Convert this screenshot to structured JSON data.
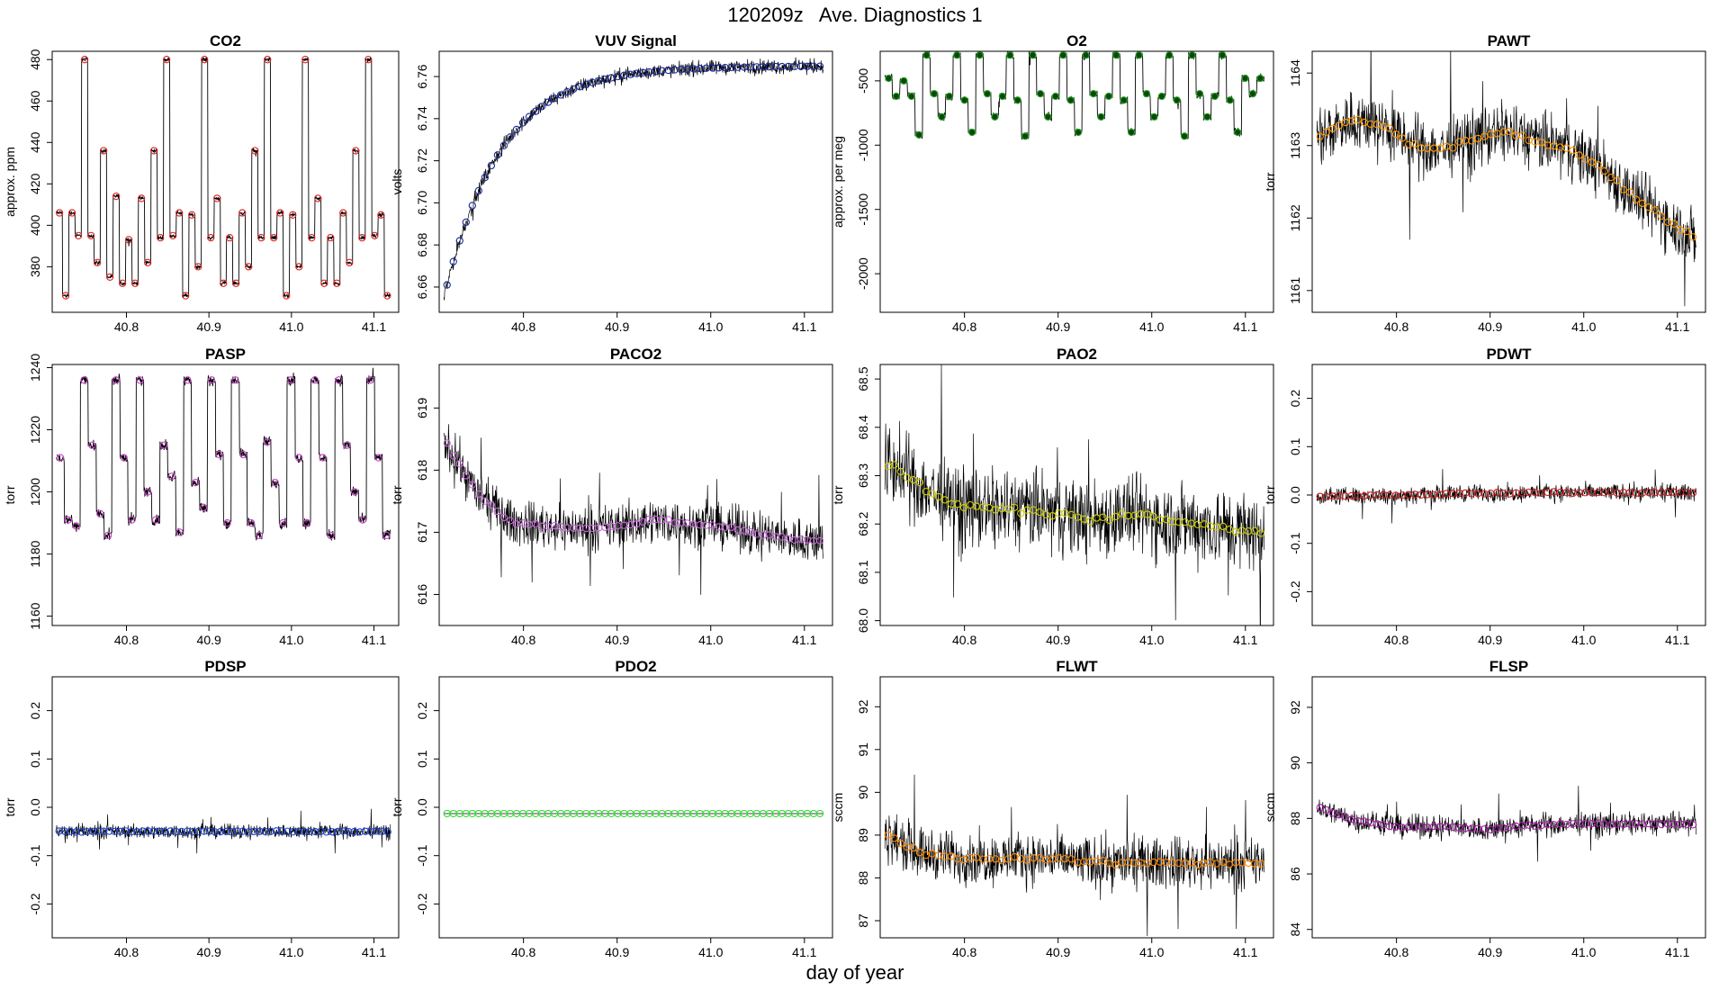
{
  "figure": {
    "title": "120209z   Ave. Diagnostics 1",
    "xlabel": "day of year"
  },
  "chart_data": [
    {
      "type": "line",
      "title": "CO2",
      "ylabel": "approx. ppm",
      "xlim": [
        40.71,
        41.13
      ],
      "ylim": [
        358,
        484
      ],
      "yticks": [
        380,
        400,
        420,
        440,
        460,
        480
      ],
      "xticks": [
        40.8,
        40.9,
        41.0,
        41.1
      ],
      "color": "#dd2222",
      "style": "step",
      "levels": [
        406,
        366,
        406,
        395,
        480,
        395,
        382,
        436,
        375,
        414,
        372,
        393,
        372,
        413,
        382,
        436,
        394,
        480,
        395,
        406,
        366,
        405,
        380,
        480,
        394,
        413,
        372,
        394,
        372,
        406,
        380,
        436,
        394,
        480,
        394,
        406,
        366,
        405,
        380,
        480,
        394,
        413,
        372,
        394,
        372,
        406,
        382,
        436,
        394,
        480,
        395,
        405,
        366
      ],
      "noise": 0.8
    },
    {
      "type": "line",
      "title": "VUV Signal",
      "ylabel": "volts",
      "xlim": [
        40.71,
        41.13
      ],
      "ylim": [
        6.648,
        6.772
      ],
      "yticks": [
        6.66,
        6.68,
        6.7,
        6.72,
        6.74,
        6.76
      ],
      "xticks": [
        40.8,
        40.9,
        41.0,
        41.1
      ],
      "color": "#1a2a99",
      "style": "curve",
      "start": 6.655,
      "end": 6.765,
      "tau": 0.06,
      "noise": 0.003
    },
    {
      "type": "line",
      "title": "O2",
      "ylabel": "approx. per meg",
      "xlim": [
        40.71,
        41.13
      ],
      "ylim": [
        -2300,
        -270
      ],
      "yticks": [
        -2000,
        -1500,
        -1000,
        -500
      ],
      "xticks": [
        40.8,
        40.9,
        41.0,
        41.1
      ],
      "color": "#22aa22",
      "style": "step",
      "levels": [
        -480,
        -620,
        -500,
        -620,
        -920,
        -300,
        -600,
        -780,
        -620,
        -300,
        -650,
        -900,
        -300,
        -600,
        -780,
        -620,
        -300,
        -650,
        -930,
        -300,
        -600,
        -780,
        -620,
        -300,
        -650,
        -900,
        -300,
        -600,
        -780,
        -620,
        -300,
        -650,
        -900,
        -300,
        -600,
        -780,
        -620,
        -300,
        -650,
        -930,
        -300,
        -600,
        -780,
        -620,
        -300,
        -650,
        -900,
        -480,
        -600,
        -480
      ],
      "noise": 25
    },
    {
      "type": "line",
      "title": "PAWT",
      "ylabel": "torr",
      "xlim": [
        40.71,
        41.13
      ],
      "ylim": [
        1160.7,
        1164.3
      ],
      "yticks": [
        1161.0,
        1162.0,
        1163.0,
        1164.0
      ],
      "xticks": [
        40.8,
        40.9,
        41.0,
        41.1
      ],
      "color": "#ff9900",
      "style": "trend",
      "trend": [
        1163.1,
        1163.35,
        1163.3,
        1163.0,
        1162.95,
        1163.1,
        1163.2,
        1163.05,
        1162.95,
        1162.7,
        1162.3,
        1162.0,
        1161.7
      ],
      "noise": 0.35
    },
    {
      "type": "line",
      "title": "PASP",
      "ylabel": "torr",
      "xlim": [
        40.71,
        41.13
      ],
      "ylim": [
        1157,
        1241
      ],
      "yticks": [
        1160,
        1180,
        1200,
        1220,
        1240
      ],
      "xticks": [
        40.8,
        40.9,
        41.0,
        41.1
      ],
      "color": "#cc44cc",
      "style": "step",
      "levels": [
        1211,
        1191,
        1189,
        1236,
        1215,
        1193,
        1186,
        1236,
        1211,
        1191,
        1236,
        1200,
        1191,
        1215,
        1205,
        1187,
        1236,
        1203,
        1195,
        1236,
        1212,
        1190,
        1236,
        1212,
        1190,
        1186,
        1216,
        1203,
        1190,
        1236,
        1211,
        1190,
        1236,
        1211,
        1186,
        1236,
        1215,
        1200,
        1191,
        1236,
        1211,
        1186
      ],
      "noise": 1.5
    },
    {
      "type": "line",
      "title": "PACO2",
      "ylabel": "torr",
      "xlim": [
        40.71,
        41.13
      ],
      "ylim": [
        615.5,
        619.7
      ],
      "yticks": [
        616,
        617,
        618,
        619
      ],
      "xticks": [
        40.8,
        40.9,
        41.0,
        41.1
      ],
      "color": "#cc66dd",
      "style": "trend",
      "trend": [
        618.5,
        617.6,
        617.15,
        617.1,
        617.05,
        617.1,
        617.2,
        617.15,
        617.1,
        617.0,
        616.9,
        616.85
      ],
      "noise": 0.3
    },
    {
      "type": "line",
      "title": "PAO2",
      "ylabel": "torr",
      "xlim": [
        40.71,
        41.13
      ],
      "ylim": [
        67.99,
        68.53
      ],
      "yticks": [
        68.0,
        68.1,
        68.2,
        68.3,
        68.4,
        68.5
      ],
      "xticks": [
        40.8,
        40.9,
        41.0,
        41.1
      ],
      "color": "#cccc00",
      "style": "trend",
      "trend": [
        68.33,
        68.28,
        68.24,
        68.23,
        68.23,
        68.22,
        68.21,
        68.22,
        68.21,
        68.2,
        68.19,
        68.18
      ],
      "noise": 0.07
    },
    {
      "type": "line",
      "title": "PDWT",
      "ylabel": "torr",
      "xlim": [
        40.71,
        41.13
      ],
      "ylim": [
        -0.27,
        0.27
      ],
      "yticks": [
        -0.2,
        -0.1,
        0.0,
        0.1,
        0.2
      ],
      "xticks": [
        40.8,
        40.9,
        41.0,
        41.1
      ],
      "color": "#cc2222",
      "style": "trend",
      "trend": [
        -0.003,
        0.0,
        0.003,
        0.005,
        0.005,
        0.005
      ],
      "noise": 0.015
    },
    {
      "type": "line",
      "title": "PDSP",
      "ylabel": "torr",
      "xlim": [
        40.71,
        41.13
      ],
      "ylim": [
        -0.27,
        0.27
      ],
      "yticks": [
        -0.2,
        -0.1,
        0.0,
        0.1,
        0.2
      ],
      "xticks": [
        40.8,
        40.9,
        41.0,
        41.1
      ],
      "color": "#2244cc",
      "style": "trend",
      "trend": [
        -0.05,
        -0.05
      ],
      "noise": 0.012
    },
    {
      "type": "line",
      "title": "PDO2",
      "ylabel": "torr",
      "xlim": [
        40.71,
        41.13
      ],
      "ylim": [
        -0.27,
        0.27
      ],
      "yticks": [
        -0.2,
        -0.1,
        0.0,
        0.1,
        0.2
      ],
      "xticks": [
        40.8,
        40.9,
        41.0,
        41.1
      ],
      "color": "#33dd33",
      "style": "flat",
      "trend": [
        -0.013,
        -0.013
      ],
      "noise": 0.0
    },
    {
      "type": "line",
      "title": "FLWT",
      "ylabel": "sccm",
      "xlim": [
        40.71,
        41.13
      ],
      "ylim": [
        86.6,
        92.7
      ],
      "yticks": [
        87,
        88,
        89,
        90,
        91,
        92
      ],
      "xticks": [
        40.8,
        40.9,
        41.0,
        41.1
      ],
      "color": "#ff8800",
      "style": "trend",
      "trend": [
        89.0,
        88.55,
        88.45,
        88.45,
        88.45,
        88.35,
        88.35,
        88.35,
        88.35,
        88.35
      ],
      "noise": 0.5
    },
    {
      "type": "line",
      "title": "FLSP",
      "ylabel": "sccm",
      "xlim": [
        40.71,
        41.13
      ],
      "ylim": [
        83.7,
        93.1
      ],
      "yticks": [
        84,
        86,
        88,
        90,
        92
      ],
      "xticks": [
        40.8,
        40.9,
        41.0,
        41.1
      ],
      "color": "#aa22aa",
      "style": "trend",
      "trend": [
        88.4,
        87.9,
        87.7,
        87.7,
        87.6,
        87.75,
        87.8,
        87.8,
        87.8,
        87.8
      ],
      "noise": 0.35
    }
  ]
}
